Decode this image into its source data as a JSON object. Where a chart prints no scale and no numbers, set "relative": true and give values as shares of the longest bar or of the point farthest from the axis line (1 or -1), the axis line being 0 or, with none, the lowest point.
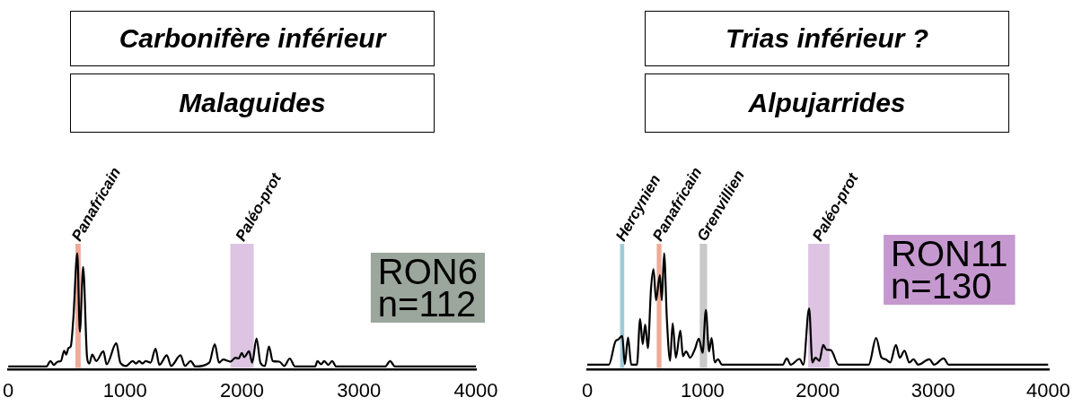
{
  "chart_data": [
    {
      "type": "line",
      "title": "Carbonifère inférieur",
      "subtitle": "Malaguides",
      "relative": true,
      "marker": "none",
      "grid": false,
      "legend": false,
      "tick_labels": "x",
      "xlim": [
        0,
        4000
      ],
      "xticks": [
        0,
        1000,
        2000,
        3000,
        4000
      ],
      "x": [
        0,
        326,
        362,
        390,
        424,
        451,
        479,
        496,
        516,
        535,
        557,
        591,
        613,
        641,
        675,
        694,
        719,
        753,
        814,
        842,
        925,
        959,
        1009,
        1065,
        1093,
        1120,
        1148,
        1176,
        1218,
        1260,
        1293,
        1357,
        1393,
        1474,
        1511,
        1561,
        1600,
        1720,
        1767,
        1803,
        1839,
        1901,
        1943,
        1971,
        1998,
        2018,
        2060,
        2087,
        2124,
        2157,
        2196,
        2230,
        2263,
        2319,
        2361,
        2408,
        2453,
        2625,
        2645,
        2676,
        2703,
        2737,
        2770,
        2806,
        3225,
        3266,
        3308,
        4000
      ],
      "series": [
        {
          "color": "#000000",
          "values": [
            0.028,
            0.028,
            0.075,
            0.042,
            0.07,
            0.075,
            0.164,
            0.131,
            0.187,
            0.2,
            0.437,
            1.0,
            0.326,
            0.883,
            0.103,
            0.053,
            0.131,
            0.075,
            0.159,
            0.047,
            0.228,
            0.061,
            0.033,
            0.075,
            0.053,
            0.075,
            0.053,
            0.075,
            0.061,
            0.181,
            0.042,
            0.125,
            0.033,
            0.125,
            0.033,
            0.075,
            0.028,
            0.061,
            0.22,
            0.061,
            0.089,
            0.07,
            0.103,
            0.097,
            0.145,
            0.109,
            0.159,
            0.061,
            0.27,
            0.061,
            0.033,
            0.2,
            0.075,
            0.07,
            0.033,
            0.097,
            0.028,
            0.028,
            0.075,
            0.047,
            0.075,
            0.042,
            0.075,
            0.028,
            0.028,
            0.075,
            0.028,
            0.028
          ]
        }
      ],
      "bands": [
        {
          "axis": "x",
          "from": 575,
          "to": 620,
          "label": "Panafricain",
          "color": "#eeab98"
        },
        {
          "axis": "x",
          "from": 1900,
          "to": 2100,
          "label": "Paléo-prot",
          "color": "#dcc4e2"
        }
      ],
      "annotations": [
        "RON6",
        "n=112"
      ]
    },
    {
      "type": "line",
      "title": "Trias inférieur ?",
      "subtitle": "Alpujarrides",
      "relative": true,
      "marker": "none",
      "grid": false,
      "legend": false,
      "tick_labels": "x",
      "xlim": [
        0,
        4000
      ],
      "xticks": [
        0,
        1000,
        2000,
        3000,
        4000
      ],
      "x": [
        0,
        188,
        243,
        271,
        304,
        326,
        354,
        382,
        431,
        459,
        481,
        503,
        526,
        553,
        575,
        597,
        630,
        647,
        667,
        691,
        719,
        741,
        769,
        808,
        830,
        857,
        893,
        935,
        968,
        1001,
        1029,
        1057,
        1079,
        1106,
        1134,
        1170,
        1696,
        1731,
        1765,
        1842,
        1875,
        1925,
        1953,
        1980,
        2014,
        2047,
        2075,
        2113,
        2180,
        2442,
        2506,
        2553,
        2589,
        2628,
        2678,
        2711,
        2752,
        2794,
        2830,
        2871,
        2968,
        3009,
        3092,
        3134,
        4000
      ],
      "series": [
        {
          "color": "#000000",
          "values": [
            0.044,
            0.044,
            0.24,
            0.262,
            0.29,
            0.049,
            0.276,
            0.044,
            0.044,
            0.437,
            0.219,
            0.388,
            0.186,
            0.691,
            0.863,
            0.596,
            0.814,
            0.596,
            1.0,
            0.432,
            0.077,
            0.399,
            0.104,
            0.336,
            0.117,
            0.158,
            0.104,
            0.18,
            0.268,
            0.145,
            0.514,
            0.158,
            0.273,
            0.063,
            0.09,
            0.044,
            0.044,
            0.098,
            0.044,
            0.093,
            0.044,
            0.527,
            0.063,
            0.104,
            0.077,
            0.213,
            0.172,
            0.169,
            0.044,
            0.044,
            0.273,
            0.104,
            0.09,
            0.063,
            0.213,
            0.104,
            0.164,
            0.063,
            0.09,
            0.044,
            0.09,
            0.044,
            0.098,
            0.044,
            0.044
          ]
        }
      ],
      "bands": [
        {
          "axis": "x",
          "from": 285,
          "to": 321,
          "label": "Hercynien",
          "color": "#9fcbd9"
        },
        {
          "axis": "x",
          "from": 603,
          "to": 644,
          "label": "Panafricain",
          "color": "#eeab98"
        },
        {
          "axis": "x",
          "from": 976,
          "to": 1040,
          "label": "Grenvillien",
          "color": "#c9c9c9"
        },
        {
          "axis": "x",
          "from": 1917,
          "to": 2102,
          "label": "Paléo-prot",
          "color": "#dcc4e2"
        }
      ],
      "annotations": [
        "RON11",
        "n=130"
      ]
    }
  ]
}
